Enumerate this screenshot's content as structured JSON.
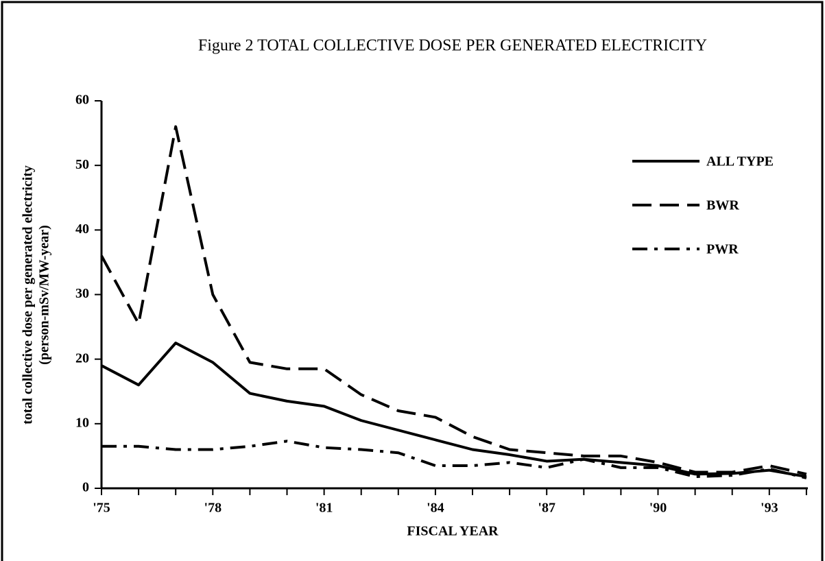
{
  "chart_data": {
    "type": "line",
    "title": "Figure 2   TOTAL COLLECTIVE DOSE PER GENERATED ELECTRICITY",
    "x_label": "FISCAL YEAR",
    "y_label": [
      "total collective dose per generated electricity",
      "(person-mSv/MW-year)"
    ],
    "categories": [
      "'75",
      null,
      null,
      "'78",
      null,
      null,
      "'81",
      null,
      null,
      "'84",
      null,
      null,
      "'87",
      null,
      null,
      "'90",
      null,
      null,
      "'93",
      null
    ],
    "series": [
      {
        "name": "ALL TYPE",
        "color": "#000000",
        "style": "solid",
        "values": [
          19,
          16,
          22.5,
          19.5,
          14.7,
          13.5,
          12.7,
          10.5,
          9,
          7.5,
          6,
          5.2,
          4.2,
          4.5,
          4,
          3.5,
          2.2,
          2.3,
          2.8,
          1.8
        ]
      },
      {
        "name": "BWR",
        "color": "#000000",
        "style": "dashed",
        "values": [
          36,
          25.5,
          56,
          30,
          19.5,
          18.5,
          18.5,
          14.5,
          12,
          11,
          8,
          6,
          5.5,
          5,
          5,
          4,
          2.5,
          2.5,
          3.5,
          2.2
        ]
      },
      {
        "name": "PWR",
        "color": "#000000",
        "style": "dashdot",
        "values": [
          6.5,
          6.5,
          6,
          6,
          6.5,
          7.3,
          6.3,
          6,
          5.5,
          3.5,
          3.5,
          4,
          3.2,
          4.5,
          3.2,
          3.2,
          1.8,
          2,
          3,
          1.6
        ]
      }
    ],
    "ylim": [
      0,
      60
    ],
    "yticks": [
      0,
      10,
      20,
      30,
      40,
      50,
      60
    ],
    "grid": false,
    "legend": "upper right"
  }
}
